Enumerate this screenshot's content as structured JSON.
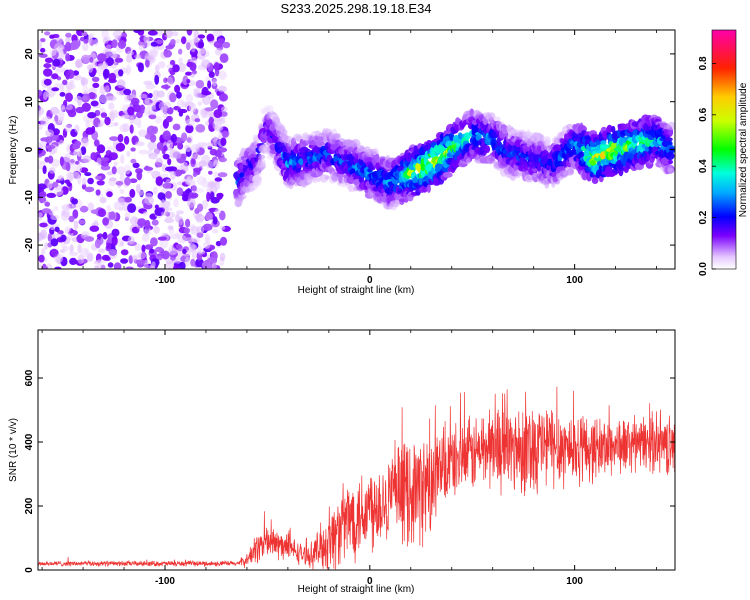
{
  "title": "S233.2025.298.19.18.E34",
  "chart_data": [
    {
      "type": "heatmap",
      "xlabel": "Height of straight line (km)",
      "ylabel": "Frequency (Hz)",
      "xlim": [
        -162,
        149
      ],
      "ylim": [
        -25,
        25
      ],
      "x_ticks": [
        -100,
        0,
        100
      ],
      "y_ticks": [
        -20,
        -10,
        0,
        10,
        20
      ],
      "colorbar": {
        "label": "Normalized spectral amplitude",
        "range": [
          0,
          0.93
        ],
        "ticks": [
          0.0,
          0.2,
          0.4,
          0.6,
          0.8
        ]
      },
      "ridge": {
        "x": [
          -65,
          -55,
          -50,
          -40,
          -30,
          -20,
          -10,
          0,
          10,
          20,
          30,
          40,
          50,
          60,
          70,
          80,
          90,
          100,
          110,
          120,
          130,
          140,
          147
        ],
        "frequency": [
          -7,
          -2,
          5,
          -3,
          -2,
          -1,
          -3,
          -5,
          -7,
          -5,
          -3,
          0,
          3,
          2,
          -1,
          -2,
          -3,
          1,
          -2,
          0,
          1,
          2,
          0
        ],
        "amplitude": [
          0.25,
          0.2,
          0.15,
          0.3,
          0.25,
          0.25,
          0.25,
          0.3,
          0.3,
          0.5,
          0.7,
          0.5,
          0.35,
          0.3,
          0.25,
          0.25,
          0.25,
          0.3,
          0.6,
          0.6,
          0.5,
          0.4,
          0.3
        ]
      },
      "noise_region_x": [
        -162,
        -70
      ],
      "grid": false
    },
    {
      "type": "line",
      "xlabel": "Height of straight line (km)",
      "ylabel": "SNR (10 * v/v)",
      "xlim": [
        -162,
        149
      ],
      "ylim": [
        0,
        750
      ],
      "x_ticks": [
        -100,
        0,
        100
      ],
      "y_ticks": [
        0,
        200,
        400,
        600
      ],
      "color": "#ee3333",
      "envelope": {
        "x": [
          -162,
          -65,
          -60,
          -55,
          -50,
          -40,
          -30,
          -20,
          -10,
          0,
          10,
          20,
          30,
          40,
          50,
          60,
          70,
          80,
          90,
          100,
          110,
          120,
          130,
          140,
          149
        ],
        "mean": [
          20,
          20,
          30,
          70,
          90,
          70,
          40,
          90,
          160,
          200,
          230,
          250,
          260,
          340,
          360,
          390,
          380,
          390,
          390,
          380,
          380,
          390,
          390,
          400,
          380
        ],
        "spread": [
          10,
          10,
          25,
          60,
          70,
          50,
          35,
          120,
          160,
          170,
          160,
          200,
          200,
          130,
          140,
          160,
          170,
          180,
          160,
          140,
          120,
          110,
          100,
          110,
          110
        ]
      },
      "grid": false
    }
  ]
}
